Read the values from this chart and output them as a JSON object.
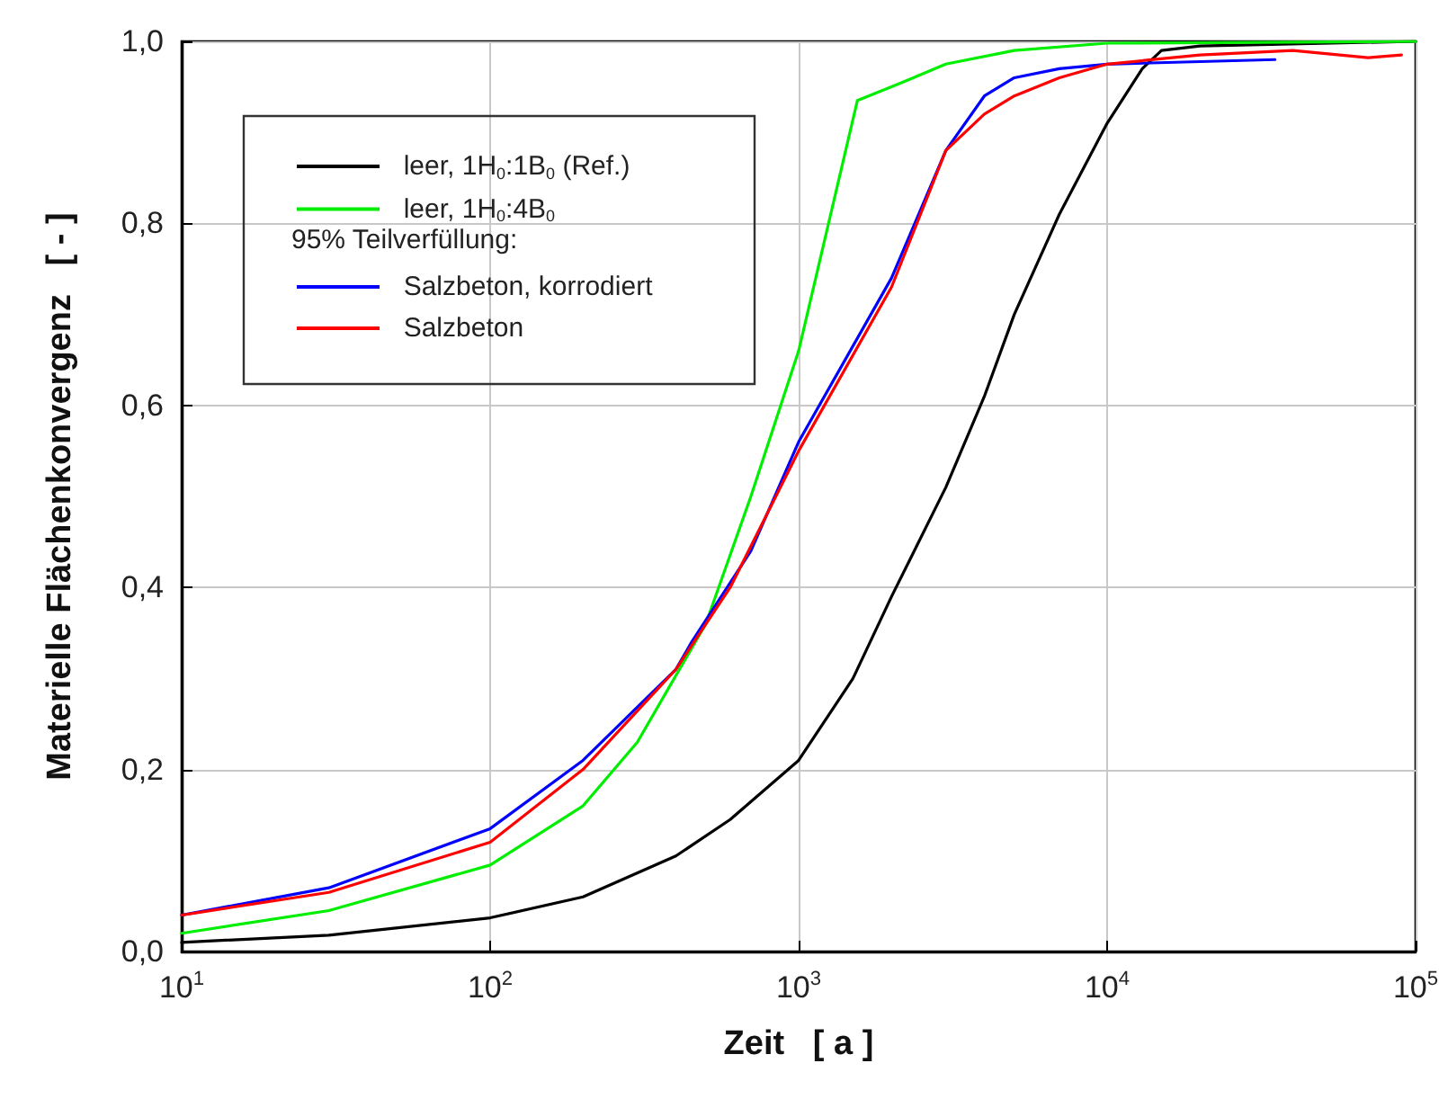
{
  "chart_data": {
    "type": "line",
    "xlabel": "Zeit   [ a ]",
    "ylabel": "Materielle Flächenkonvergenz   [ - ]",
    "log": "x",
    "grid": true,
    "legend": "top left",
    "line_style": "solid",
    "marker": "none",
    "xlim": [
      10,
      100000
    ],
    "xticks": [
      {
        "value": 10,
        "label": "10$^{1}$"
      },
      {
        "value": 100,
        "label": "10$^{2}$"
      },
      {
        "value": 1000,
        "label": "10$^{3}$"
      },
      {
        "value": 10000,
        "label": "10$^{4}$"
      },
      {
        "value": 100000,
        "label": "10$^{5}$"
      }
    ],
    "ylim": [
      0,
      1
    ],
    "yticks": [
      {
        "value": 0,
        "label": "0,0"
      },
      {
        "value": 0.2,
        "label": "0,2"
      },
      {
        "value": 0.4,
        "label": "0,4"
      },
      {
        "value": 0.6,
        "label": "0,6"
      },
      {
        "value": 0.8,
        "label": "0,8"
      },
      {
        "value": 1,
        "label": "1,0"
      }
    ],
    "annotations": [
      "95% Teilverfüllung:"
    ],
    "series": [
      {
        "name": "leer, 1H$_{0}$:1B$_{0}$ (Ref.)",
        "color": "#000000",
        "x": [
          10,
          30,
          100,
          200,
          400,
          600,
          1000,
          1500,
          2000,
          3000,
          4000,
          5000,
          7000,
          10000,
          13000,
          15000,
          20000,
          100000
        ],
        "values": [
          0.01,
          0.018,
          0.037,
          0.06,
          0.105,
          0.145,
          0.21,
          0.3,
          0.39,
          0.51,
          0.61,
          0.7,
          0.81,
          0.91,
          0.97,
          0.99,
          0.995,
          1.0
        ]
      },
      {
        "name": "leer, 1H$_{0}$:4B$_{0}$",
        "color": "#00ee00",
        "x": [
          10,
          30,
          100,
          200,
          300,
          500,
          700,
          1000,
          1550,
          2000,
          3000,
          5000,
          10000,
          100000
        ],
        "values": [
          0.02,
          0.045,
          0.095,
          0.16,
          0.23,
          0.36,
          0.5,
          0.66,
          0.935,
          0.95,
          0.975,
          0.99,
          0.998,
          1.0
        ]
      },
      {
        "name": "Salzbeton, korrodiert",
        "color": "#0000ff",
        "x": [
          10,
          30,
          100,
          200,
          400,
          450,
          700,
          1000,
          2000,
          3000,
          4000,
          5000,
          7000,
          10000,
          35000
        ],
        "values": [
          0.04,
          0.07,
          0.135,
          0.21,
          0.31,
          0.34,
          0.44,
          0.56,
          0.74,
          0.88,
          0.94,
          0.96,
          0.97,
          0.975,
          0.98
        ]
      },
      {
        "name": "Salzbeton",
        "color": "#ff0000",
        "x": [
          10,
          30,
          100,
          200,
          400,
          600,
          1000,
          2000,
          3000,
          4000,
          5000,
          7000,
          10000,
          20000,
          40000,
          70000,
          90000
        ],
        "values": [
          0.04,
          0.065,
          0.12,
          0.2,
          0.31,
          0.4,
          0.55,
          0.73,
          0.88,
          0.92,
          0.94,
          0.96,
          0.975,
          0.985,
          0.99,
          0.982,
          0.985
        ]
      }
    ]
  }
}
